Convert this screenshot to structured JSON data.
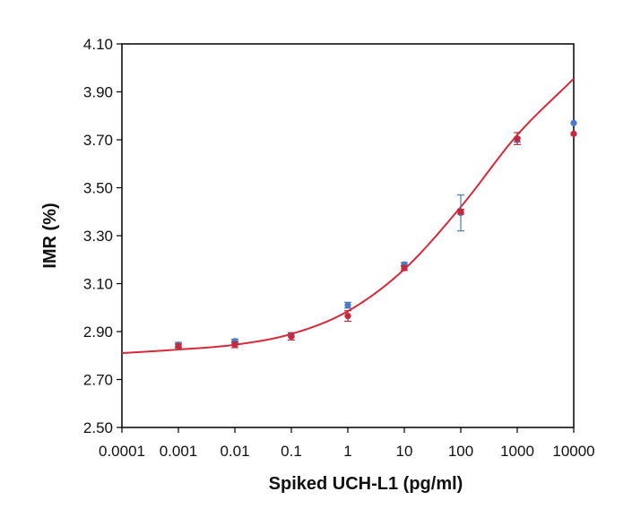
{
  "chart_data": {
    "type": "scatter",
    "title": "",
    "xlabel": "Spiked UCH-L1 (pg/ml)",
    "ylabel": "IMR (%)",
    "x_scale": "log",
    "xlim": [
      0.0001,
      10000
    ],
    "ylim": [
      2.5,
      4.1
    ],
    "x_ticks": [
      0.0001,
      0.001,
      0.01,
      0.1,
      1,
      10,
      100,
      1000,
      10000
    ],
    "x_tick_labels": [
      "0.0001",
      "0.001",
      "0.01",
      "0.1",
      "1",
      "10",
      "100",
      "1000",
      "10000"
    ],
    "y_ticks": [
      2.5,
      2.7,
      2.9,
      3.1,
      3.3,
      3.5,
      3.7,
      3.9,
      4.1
    ],
    "y_tick_labels": [
      "2.50",
      "2.70",
      "2.90",
      "3.10",
      "3.30",
      "3.50",
      "3.70",
      "3.90",
      "4.10"
    ],
    "grid": false,
    "legend": "none",
    "series": [
      {
        "marker": "circle",
        "color": "#4a7cc4",
        "points": [
          {
            "x": 0.001,
            "y": 2.845,
            "err": 0.01
          },
          {
            "x": 0.01,
            "y": 2.86,
            "err": 0.008
          },
          {
            "x": 0.1,
            "y": 2.885,
            "err": 0.008
          },
          {
            "x": 1,
            "y": 3.01,
            "err": 0.012
          },
          {
            "x": 10,
            "y": 3.18,
            "err": 0.008
          },
          {
            "x": 100,
            "y": 3.395,
            "err": 0.075
          },
          {
            "x": 1000,
            "y": 3.7,
            "err": 0.01
          },
          {
            "x": 10000,
            "y": 3.77,
            "err": 0
          }
        ]
      },
      {
        "marker": "circle",
        "color": "#c4293d",
        "points": [
          {
            "x": 0.001,
            "y": 2.84,
            "err": 0.008
          },
          {
            "x": 0.01,
            "y": 2.845,
            "err": 0.012
          },
          {
            "x": 0.1,
            "y": 2.88,
            "err": 0.015
          },
          {
            "x": 1,
            "y": 2.965,
            "err": 0.022
          },
          {
            "x": 10,
            "y": 3.165,
            "err": 0.01
          },
          {
            "x": 100,
            "y": 3.4,
            "err": 0.01
          },
          {
            "x": 1000,
            "y": 3.705,
            "err": 0.025
          },
          {
            "x": 10000,
            "y": 3.725,
            "err": 0
          }
        ]
      }
    ],
    "fit_curve": {
      "color": "#d62a3a",
      "x": [
        0.0001,
        0.001,
        0.01,
        0.1,
        1,
        10,
        100,
        1000,
        10000
      ],
      "y": [
        2.81,
        2.825,
        2.845,
        2.89,
        2.985,
        3.16,
        3.42,
        3.72,
        3.955
      ]
    }
  }
}
